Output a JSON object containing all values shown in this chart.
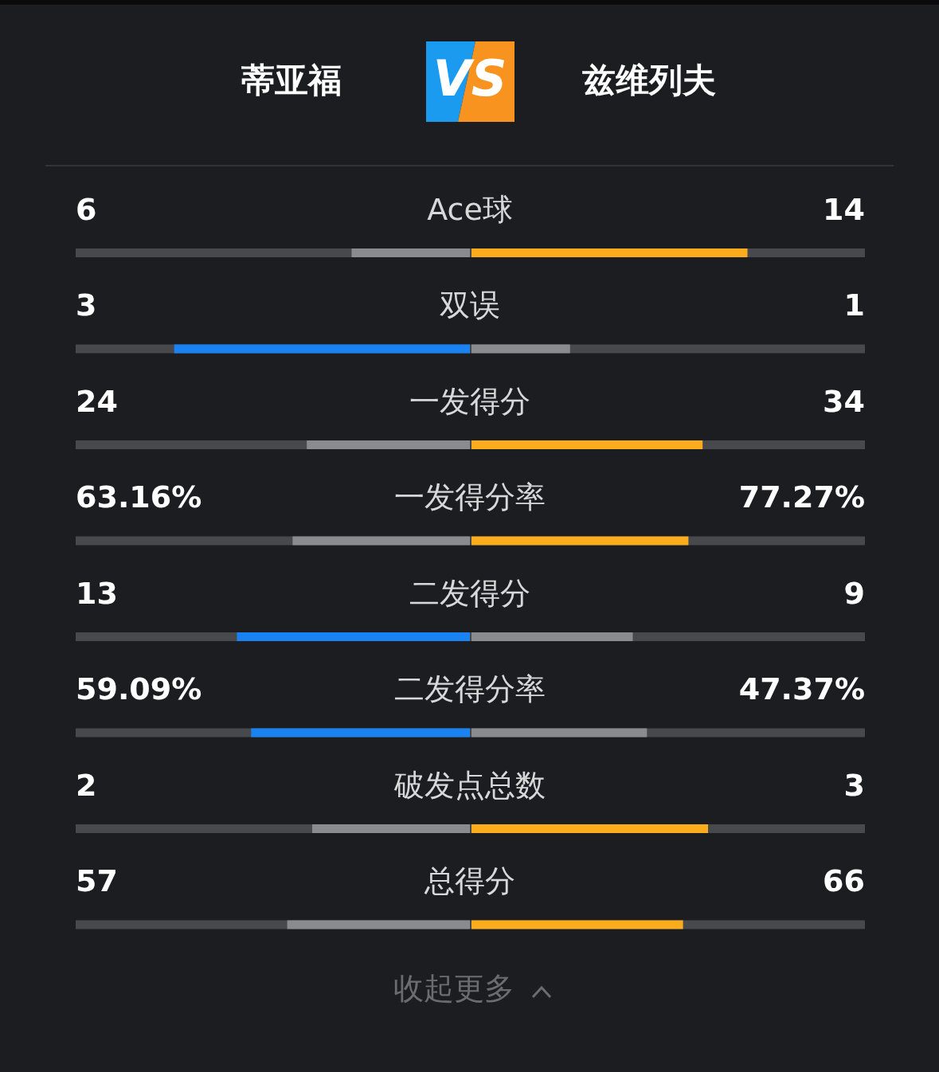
{
  "chart_data": {
    "type": "other",
    "categories": [
      "Ace球",
      "双误",
      "一发得分",
      "一发得分率",
      "二发得分",
      "二发得分率",
      "破发点总数",
      "总得分"
    ],
    "series": [
      {
        "name": "蒂亚福",
        "values": [
          6,
          3,
          24,
          63.16,
          13,
          59.09,
          2,
          57
        ],
        "value_labels": [
          "6",
          "3",
          "24",
          "63.16%",
          "13",
          "59.09%",
          "2",
          "57"
        ],
        "colors": [
          "#8a8b8e",
          "#1a82f2",
          "#8a8b8e",
          "#8a8b8e",
          "#1a82f2",
          "#1a82f2",
          "#8a8b8e",
          "#8a8b8e"
        ]
      },
      {
        "name": "兹维列夫",
        "values": [
          14,
          1,
          34,
          77.27,
          9,
          47.37,
          3,
          66
        ],
        "value_labels": [
          "14",
          "1",
          "34",
          "77.27%",
          "9",
          "47.37%",
          "3",
          "66"
        ],
        "colors": [
          "#fbac1c",
          "#8a8b8e",
          "#fbac1c",
          "#fbac1c",
          "#8a8b8e",
          "#8a8b8e",
          "#fbac1c",
          "#fbac1c"
        ]
      }
    ],
    "annotations": [
      "VS",
      "收起更多"
    ]
  }
}
